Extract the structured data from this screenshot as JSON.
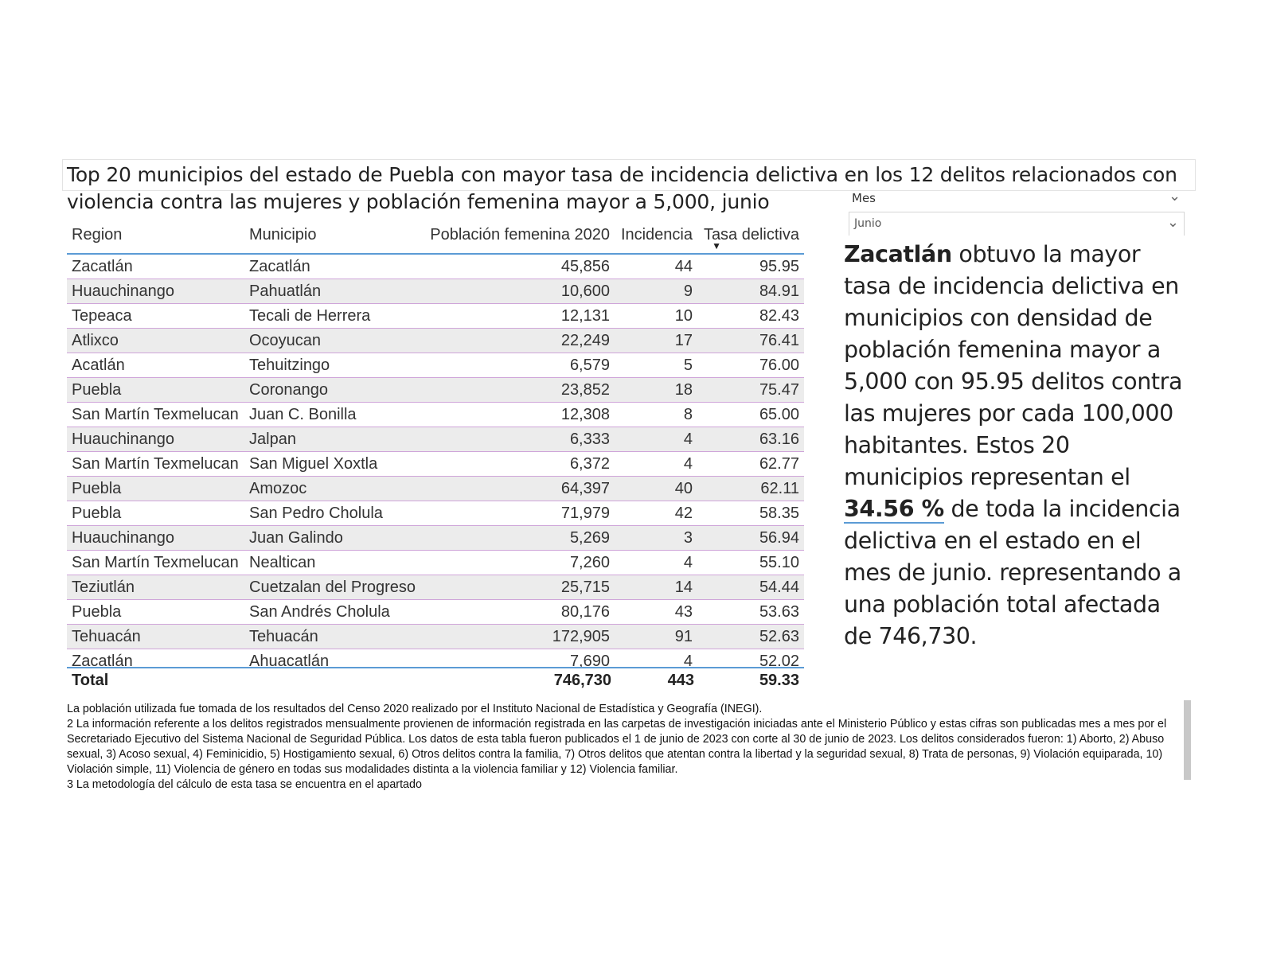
{
  "title": "Top 20 municipios del estado de Puebla con mayor tasa de incidencia delictiva en los 12 delitos relacionados con violencia contra las mujeres y población femenina mayor a 5,000, junio",
  "slicer": {
    "label": "Mes",
    "value": "Junio"
  },
  "table": {
    "columns": [
      "Region",
      "Municipio",
      "Población femenina 2020",
      "Incidencia",
      "Tasa delictiva"
    ],
    "rows": [
      [
        "Zacatlán",
        "Zacatlán",
        "45,856",
        "44",
        "95.95"
      ],
      [
        "Huauchinango",
        "Pahuatlán",
        "10,600",
        "9",
        "84.91"
      ],
      [
        "Tepeaca",
        "Tecali de Herrera",
        "12,131",
        "10",
        "82.43"
      ],
      [
        "Atlixco",
        "Ocoyucan",
        "22,249",
        "17",
        "76.41"
      ],
      [
        "Acatlán",
        "Tehuitzingo",
        "6,579",
        "5",
        "76.00"
      ],
      [
        "Puebla",
        "Coronango",
        "23,852",
        "18",
        "75.47"
      ],
      [
        "San Martín Texmelucan",
        "Juan C. Bonilla",
        "12,308",
        "8",
        "65.00"
      ],
      [
        "Huauchinango",
        "Jalpan",
        "6,333",
        "4",
        "63.16"
      ],
      [
        "San Martín Texmelucan",
        "San Miguel Xoxtla",
        "6,372",
        "4",
        "62.77"
      ],
      [
        "Puebla",
        "Amozoc",
        "64,397",
        "40",
        "62.11"
      ],
      [
        "Puebla",
        "San Pedro Cholula",
        "71,979",
        "42",
        "58.35"
      ],
      [
        "Huauchinango",
        "Juan Galindo",
        "5,269",
        "3",
        "56.94"
      ],
      [
        "San Martín Texmelucan",
        "Nealtican",
        "7,260",
        "4",
        "55.10"
      ],
      [
        "Teziutlán",
        "Cuetzalan del Progreso",
        "25,715",
        "14",
        "54.44"
      ],
      [
        "Puebla",
        "San Andrés Cholula",
        "80,176",
        "43",
        "53.63"
      ],
      [
        "Tehuacán",
        "Tehuacán",
        "172,905",
        "91",
        "52.63"
      ],
      [
        "Zacatlán",
        "Ahuacatlán",
        "7,690",
        "4",
        "52.02"
      ]
    ],
    "total": {
      "label": "Total",
      "poblacion": "746,730",
      "incidencia": "443",
      "tasa": "59.33"
    }
  },
  "narrative": {
    "highlight": "Zacatlán",
    "part1": " obtuvo la mayor tasa de incidencia delictiva en municipios con densidad de población femenina mayor a 5,000 con 95.95 delitos contra las mujeres por cada 100,000 habitantes. Estos 20 municipios representan el ",
    "percent": "34.56 %",
    "part2": " de toda la incidencia delictiva en el estado en el mes de junio. representando a una población total afectada de 746,730."
  },
  "notes": [
    "La población utilizada fue tomada de los resultados del Censo 2020 realizado por el Instituto Nacional de Estadística y Geografía (INEGI).",
    "2 La información referente a los delitos registrados mensualmente provienen de  información registrada en las carpetas de investigación iniciadas ante el Ministerio Público y estas cifras son publicadas mes a mes por el Secretariado Ejecutivo del Sistema Nacional de Seguridad Pública. Los datos de esta tabla fueron publicados el 1 de junio de 2023 con corte al 30 de junio de 2023. Los delitos considerados fueron: 1) Aborto, 2) Abuso sexual, 3) Acoso sexual, 4) Feminicidio, 5) Hostigamiento sexual, 6) Otros delitos contra la familia, 7) Otros delitos que atentan contra la libertad y la seguridad sexual, 8) Trata de personas, 9) Violación equiparada, 10) Violación simple, 11) Violencia de género en todas sus modalidades distinta a la violencia familiar y 12) Violencia familiar.",
    "3 La metodología del cálculo de esta tasa se encuentra en el apartado"
  ],
  "icons": {
    "sort": "sort-descending-icon",
    "dropdown": "chevron-down-icon"
  }
}
